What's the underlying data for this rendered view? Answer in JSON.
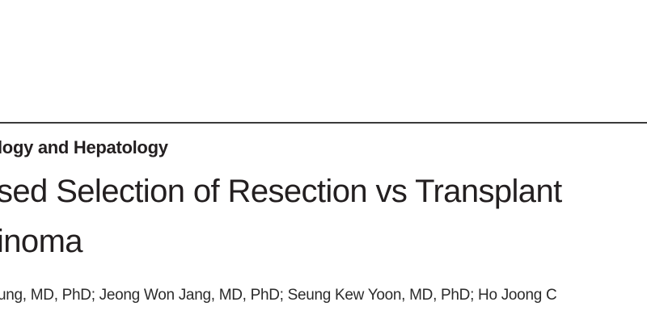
{
  "header": {
    "section": "logy and Hepatology",
    "title_lines": [
      "sed Selection of Resection vs Transplant",
      "inoma"
    ],
    "authors": "ung, MD, PhD; Jeong Won Jang, MD, PhD; Seung Kew Yoon, MD, PhD; Ho Joong C"
  }
}
